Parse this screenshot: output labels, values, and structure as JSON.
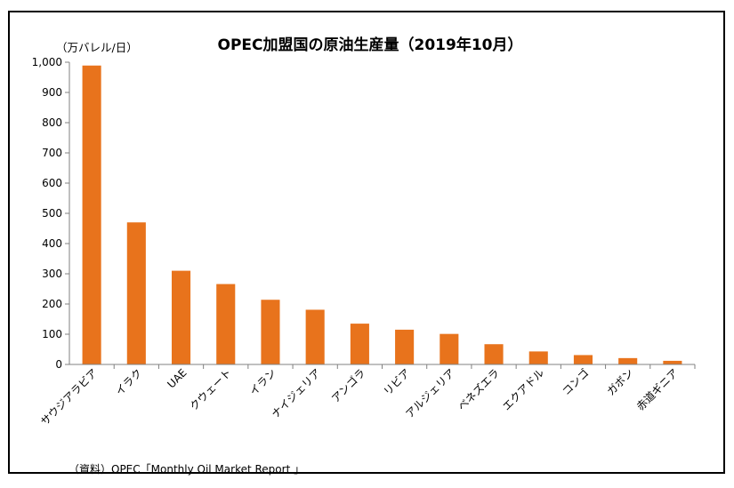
{
  "chart_data": {
    "type": "bar",
    "title": "OPEC加盟国の原油生産量（2019年10月）",
    "ylabel": "（万バレル/日）",
    "xlabel": "",
    "categories": [
      "サウジアラビア",
      "イラク",
      "UAE",
      "クウェート",
      "イラン",
      "ナイジェリア",
      "アンゴラ",
      "リビア",
      "アルジェリア",
      "ベネズエラ",
      "エクアドル",
      "コンゴ",
      "ガボン",
      "赤道ギニア"
    ],
    "values": [
      989,
      470,
      310,
      266,
      214,
      181,
      135,
      115,
      101,
      67,
      43,
      31,
      21,
      12
    ],
    "ylim": [
      0,
      1000
    ],
    "yticks": [
      "0",
      "100",
      "200",
      "300",
      "400",
      "500",
      "600",
      "700",
      "800",
      "900",
      "1,000"
    ],
    "bar_color": "#e8731c",
    "grid": false,
    "legend": "none",
    "source": "（資料）OPEC「Monthly Oil Market Report 」"
  }
}
